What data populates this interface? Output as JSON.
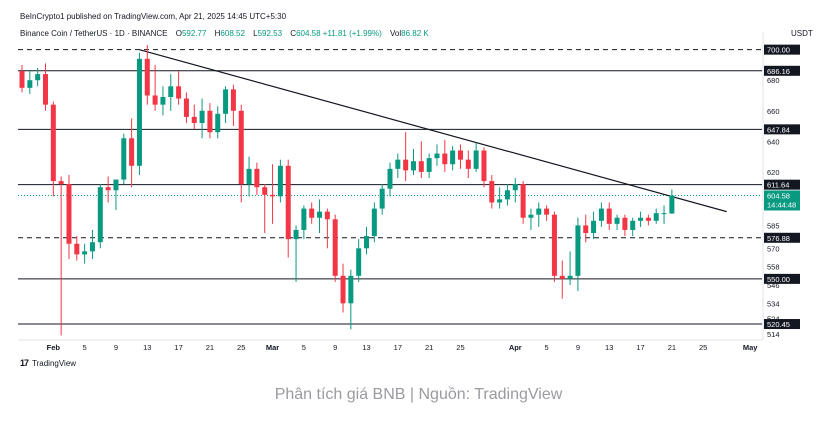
{
  "header": {
    "published": "BeInCrypto1 published on TradingView.com, Apr 21, 2025 14:45 UTC+5:30",
    "symbol": "Binance Coin / TetherUS · 1D · BINANCE",
    "o_label": "O",
    "o_value": "592.77",
    "h_label": "H",
    "h_value": "608.52",
    "l_label": "L",
    "l_value": "592.53",
    "c_label": "C",
    "c_value": "604.58",
    "change": "+11.81 (+1.99%)",
    "volume_label": "Vol",
    "volume_value": "86.82 K",
    "currency": "USDT"
  },
  "footer": {
    "logo_text": "TradingView",
    "caption": "Phân tích giá BNB | Nguồn: TradingView"
  },
  "colors": {
    "up": "#089981",
    "down": "#f23645",
    "level_line": "#131722",
    "trend_line": "#131722",
    "price_line": "#089981",
    "label_bg": "#131722"
  },
  "chart_data": {
    "type": "candlestick",
    "title": "Binance Coin / TetherUS · 1D · BINANCE",
    "y_axis": {
      "ticks": [
        700,
        680,
        660,
        640,
        620,
        600,
        585,
        570,
        558,
        546,
        534,
        524,
        514
      ],
      "ylim": [
        510,
        705
      ]
    },
    "x_axis": {
      "ticks": [
        {
          "label": "Feb",
          "date": "2025-02-01"
        },
        {
          "label": "5",
          "date": "2025-02-05"
        },
        {
          "label": "9",
          "date": "2025-02-09"
        },
        {
          "label": "13",
          "date": "2025-02-13"
        },
        {
          "label": "17",
          "date": "2025-02-17"
        },
        {
          "label": "21",
          "date": "2025-02-21"
        },
        {
          "label": "25",
          "date": "2025-02-25"
        },
        {
          "label": "Mar",
          "date": "2025-03-01"
        },
        {
          "label": "5",
          "date": "2025-03-05"
        },
        {
          "label": "9",
          "date": "2025-03-09"
        },
        {
          "label": "13",
          "date": "2025-03-13"
        },
        {
          "label": "17",
          "date": "2025-03-17"
        },
        {
          "label": "21",
          "date": "2025-03-21"
        },
        {
          "label": "25",
          "date": "2025-03-25"
        },
        {
          "label": "Apr",
          "date": "2025-04-01"
        },
        {
          "label": "5",
          "date": "2025-04-05"
        },
        {
          "label": "9",
          "date": "2025-04-09"
        },
        {
          "label": "13",
          "date": "2025-04-13"
        },
        {
          "label": "17",
          "date": "2025-04-17"
        },
        {
          "label": "21",
          "date": "2025-04-21"
        },
        {
          "label": "25",
          "date": "2025-04-25"
        },
        {
          "label": "May",
          "date": "2025-05-01"
        }
      ],
      "range": [
        "2025-01-28",
        "2025-05-02"
      ]
    },
    "levels": [
      {
        "value": 700.0,
        "label": "700.00",
        "style": "dashed"
      },
      {
        "value": 686.16,
        "label": "686.16",
        "style": "solid"
      },
      {
        "value": 647.84,
        "label": "647.84",
        "style": "solid"
      },
      {
        "value": 611.64,
        "label": "611.64",
        "style": "solid"
      },
      {
        "value": 576.88,
        "label": "576.88",
        "style": "dashed"
      },
      {
        "value": 550.0,
        "label": "550.00",
        "style": "solid"
      },
      {
        "value": 520.45,
        "label": "520.45",
        "style": "solid"
      }
    ],
    "current_price": {
      "value": 604.58,
      "label": "604.58",
      "countdown": "14:44:48"
    },
    "trend_line": {
      "from": {
        "date": "2025-02-12",
        "value": 700
      },
      "to": {
        "date": "2025-04-28",
        "value": 594
      }
    },
    "candles": [
      {
        "date": "2025-01-28",
        "o": 686,
        "h": 690,
        "l": 672,
        "c": 675
      },
      {
        "date": "2025-01-29",
        "o": 675,
        "h": 686,
        "l": 671,
        "c": 680
      },
      {
        "date": "2025-01-30",
        "o": 680,
        "h": 688,
        "l": 676,
        "c": 684
      },
      {
        "date": "2025-01-31",
        "o": 684,
        "h": 691,
        "l": 660,
        "c": 664
      },
      {
        "date": "2025-02-01",
        "o": 664,
        "h": 666,
        "l": 604,
        "c": 614
      },
      {
        "date": "2025-02-02",
        "o": 614,
        "h": 617,
        "l": 513,
        "c": 612
      },
      {
        "date": "2025-02-03",
        "o": 612,
        "h": 618,
        "l": 563,
        "c": 573
      },
      {
        "date": "2025-02-04",
        "o": 573,
        "h": 578,
        "l": 562,
        "c": 566
      },
      {
        "date": "2025-02-05",
        "o": 566,
        "h": 573,
        "l": 560,
        "c": 568
      },
      {
        "date": "2025-02-06",
        "o": 568,
        "h": 582,
        "l": 563,
        "c": 574
      },
      {
        "date": "2025-02-07",
        "o": 574,
        "h": 612,
        "l": 570,
        "c": 610
      },
      {
        "date": "2025-02-08",
        "o": 610,
        "h": 617,
        "l": 600,
        "c": 608
      },
      {
        "date": "2025-02-09",
        "o": 608,
        "h": 614,
        "l": 595,
        "c": 615
      },
      {
        "date": "2025-02-10",
        "o": 615,
        "h": 645,
        "l": 612,
        "c": 642
      },
      {
        "date": "2025-02-11",
        "o": 642,
        "h": 655,
        "l": 610,
        "c": 624
      },
      {
        "date": "2025-02-12",
        "o": 624,
        "h": 698,
        "l": 618,
        "c": 694
      },
      {
        "date": "2025-02-13",
        "o": 694,
        "h": 703,
        "l": 664,
        "c": 670
      },
      {
        "date": "2025-02-14",
        "o": 670,
        "h": 690,
        "l": 660,
        "c": 664
      },
      {
        "date": "2025-02-15",
        "o": 664,
        "h": 676,
        "l": 657,
        "c": 669
      },
      {
        "date": "2025-02-16",
        "o": 669,
        "h": 684,
        "l": 660,
        "c": 676
      },
      {
        "date": "2025-02-17",
        "o": 676,
        "h": 686,
        "l": 664,
        "c": 668
      },
      {
        "date": "2025-02-18",
        "o": 668,
        "h": 672,
        "l": 652,
        "c": 656
      },
      {
        "date": "2025-02-19",
        "o": 656,
        "h": 664,
        "l": 648,
        "c": 652
      },
      {
        "date": "2025-02-20",
        "o": 652,
        "h": 668,
        "l": 642,
        "c": 660
      },
      {
        "date": "2025-02-21",
        "o": 660,
        "h": 665,
        "l": 642,
        "c": 646
      },
      {
        "date": "2025-02-22",
        "o": 646,
        "h": 663,
        "l": 642,
        "c": 658
      },
      {
        "date": "2025-02-23",
        "o": 658,
        "h": 676,
        "l": 652,
        "c": 674
      },
      {
        "date": "2025-02-24",
        "o": 674,
        "h": 677,
        "l": 650,
        "c": 660
      },
      {
        "date": "2025-02-25",
        "o": 660,
        "h": 664,
        "l": 600,
        "c": 612
      },
      {
        "date": "2025-02-26",
        "o": 612,
        "h": 630,
        "l": 604,
        "c": 622
      },
      {
        "date": "2025-02-27",
        "o": 622,
        "h": 626,
        "l": 605,
        "c": 610
      },
      {
        "date": "2025-02-28",
        "o": 610,
        "h": 612,
        "l": 580,
        "c": 605
      },
      {
        "date": "2025-03-01",
        "o": 605,
        "h": 625,
        "l": 586,
        "c": 604
      },
      {
        "date": "2025-03-02",
        "o": 604,
        "h": 628,
        "l": 600,
        "c": 624
      },
      {
        "date": "2025-03-03",
        "o": 624,
        "h": 628,
        "l": 564,
        "c": 576
      },
      {
        "date": "2025-03-04",
        "o": 576,
        "h": 585,
        "l": 548,
        "c": 582
      },
      {
        "date": "2025-03-05",
        "o": 582,
        "h": 598,
        "l": 576,
        "c": 596
      },
      {
        "date": "2025-03-06",
        "o": 596,
        "h": 600,
        "l": 586,
        "c": 590
      },
      {
        "date": "2025-03-07",
        "o": 590,
        "h": 602,
        "l": 580,
        "c": 594
      },
      {
        "date": "2025-03-08",
        "o": 594,
        "h": 596,
        "l": 570,
        "c": 589
      },
      {
        "date": "2025-03-09",
        "o": 589,
        "h": 592,
        "l": 548,
        "c": 552
      },
      {
        "date": "2025-03-10",
        "o": 552,
        "h": 560,
        "l": 528,
        "c": 534
      },
      {
        "date": "2025-03-11",
        "o": 534,
        "h": 556,
        "l": 517,
        "c": 552
      },
      {
        "date": "2025-03-12",
        "o": 552,
        "h": 576,
        "l": 548,
        "c": 570
      },
      {
        "date": "2025-03-13",
        "o": 570,
        "h": 584,
        "l": 566,
        "c": 578
      },
      {
        "date": "2025-03-14",
        "o": 578,
        "h": 600,
        "l": 574,
        "c": 596
      },
      {
        "date": "2025-03-15",
        "o": 596,
        "h": 612,
        "l": 592,
        "c": 609
      },
      {
        "date": "2025-03-16",
        "o": 609,
        "h": 626,
        "l": 604,
        "c": 622
      },
      {
        "date": "2025-03-17",
        "o": 622,
        "h": 632,
        "l": 616,
        "c": 628
      },
      {
        "date": "2025-03-18",
        "o": 628,
        "h": 646,
        "l": 614,
        "c": 621
      },
      {
        "date": "2025-03-19",
        "o": 621,
        "h": 635,
        "l": 618,
        "c": 627
      },
      {
        "date": "2025-03-20",
        "o": 627,
        "h": 640,
        "l": 616,
        "c": 620
      },
      {
        "date": "2025-03-21",
        "o": 620,
        "h": 632,
        "l": 616,
        "c": 629
      },
      {
        "date": "2025-03-22",
        "o": 629,
        "h": 638,
        "l": 624,
        "c": 632
      },
      {
        "date": "2025-03-23",
        "o": 632,
        "h": 641,
        "l": 620,
        "c": 625
      },
      {
        "date": "2025-03-24",
        "o": 625,
        "h": 637,
        "l": 621,
        "c": 634
      },
      {
        "date": "2025-03-25",
        "o": 634,
        "h": 638,
        "l": 622,
        "c": 628
      },
      {
        "date": "2025-03-26",
        "o": 628,
        "h": 634,
        "l": 616,
        "c": 622
      },
      {
        "date": "2025-03-27",
        "o": 622,
        "h": 639,
        "l": 620,
        "c": 634
      },
      {
        "date": "2025-03-28",
        "o": 634,
        "h": 636,
        "l": 610,
        "c": 614
      },
      {
        "date": "2025-03-29",
        "o": 614,
        "h": 618,
        "l": 596,
        "c": 600
      },
      {
        "date": "2025-03-30",
        "o": 600,
        "h": 610,
        "l": 596,
        "c": 602
      },
      {
        "date": "2025-03-31",
        "o": 602,
        "h": 612,
        "l": 598,
        "c": 608
      },
      {
        "date": "2025-04-01",
        "o": 608,
        "h": 616,
        "l": 600,
        "c": 612
      },
      {
        "date": "2025-04-02",
        "o": 612,
        "h": 614,
        "l": 586,
        "c": 590
      },
      {
        "date": "2025-04-03",
        "o": 590,
        "h": 596,
        "l": 582,
        "c": 592
      },
      {
        "date": "2025-04-04",
        "o": 592,
        "h": 600,
        "l": 584,
        "c": 596
      },
      {
        "date": "2025-04-05",
        "o": 596,
        "h": 598,
        "l": 588,
        "c": 592
      },
      {
        "date": "2025-04-06",
        "o": 592,
        "h": 594,
        "l": 548,
        "c": 552
      },
      {
        "date": "2025-04-07",
        "o": 552,
        "h": 562,
        "l": 537,
        "c": 550
      },
      {
        "date": "2025-04-08",
        "o": 550,
        "h": 568,
        "l": 546,
        "c": 552
      },
      {
        "date": "2025-04-09",
        "o": 552,
        "h": 590,
        "l": 542,
        "c": 585
      },
      {
        "date": "2025-04-10",
        "o": 585,
        "h": 592,
        "l": 574,
        "c": 580
      },
      {
        "date": "2025-04-11",
        "o": 580,
        "h": 594,
        "l": 576,
        "c": 588
      },
      {
        "date": "2025-04-12",
        "o": 588,
        "h": 600,
        "l": 584,
        "c": 596
      },
      {
        "date": "2025-04-13",
        "o": 596,
        "h": 600,
        "l": 582,
        "c": 586
      },
      {
        "date": "2025-04-14",
        "o": 586,
        "h": 592,
        "l": 582,
        "c": 590
      },
      {
        "date": "2025-04-15",
        "o": 590,
        "h": 592,
        "l": 578,
        "c": 582
      },
      {
        "date": "2025-04-16",
        "o": 582,
        "h": 590,
        "l": 578,
        "c": 588
      },
      {
        "date": "2025-04-17",
        "o": 588,
        "h": 594,
        "l": 584,
        "c": 590
      },
      {
        "date": "2025-04-18",
        "o": 590,
        "h": 592,
        "l": 585,
        "c": 588
      },
      {
        "date": "2025-04-19",
        "o": 588,
        "h": 596,
        "l": 586,
        "c": 593
      },
      {
        "date": "2025-04-20",
        "o": 593,
        "h": 598,
        "l": 586,
        "c": 593
      },
      {
        "date": "2025-04-21",
        "o": 592.77,
        "h": 608.52,
        "l": 592.53,
        "c": 604.58
      }
    ]
  }
}
